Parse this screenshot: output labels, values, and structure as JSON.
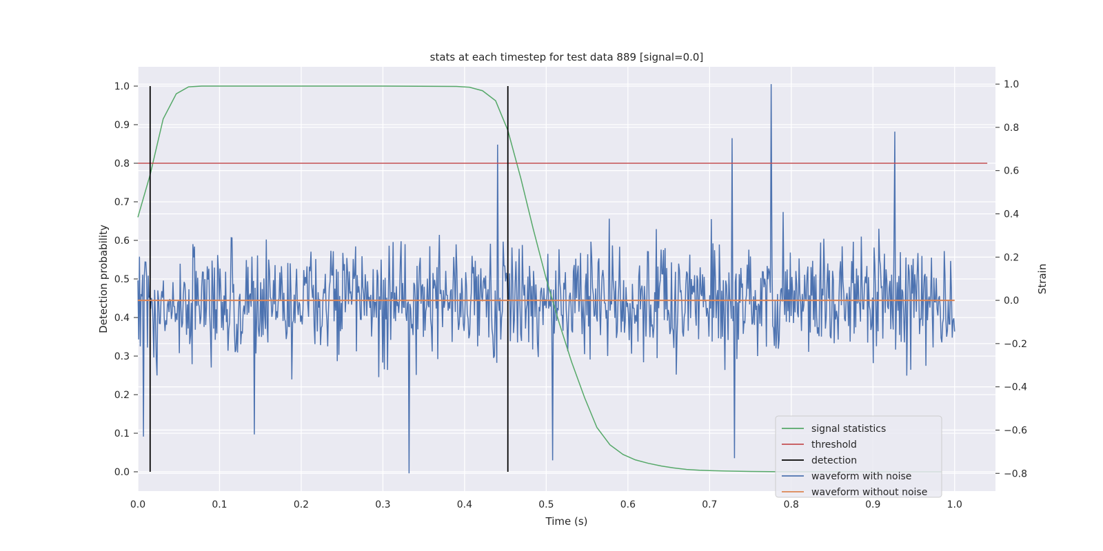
{
  "chart_data": {
    "type": "line",
    "title": "stats at each timestep for test data 889 [signal=0.0]",
    "xlabel": "Time (s)",
    "ylabel": "Detection probability",
    "y2label": "Strain",
    "xlim": [
      0.0,
      1.05
    ],
    "ylim": [
      -0.05,
      1.05
    ],
    "y2lim": [
      -0.882,
      1.08
    ],
    "x_ticks": [
      "0.0",
      "0.1",
      "0.2",
      "0.3",
      "0.4",
      "0.5",
      "0.6",
      "0.7",
      "0.8",
      "0.9",
      "1.0"
    ],
    "y_ticks": [
      "0.0",
      "0.1",
      "0.2",
      "0.3",
      "0.4",
      "0.5",
      "0.6",
      "0.7",
      "0.8",
      "0.9",
      "1.0"
    ],
    "y2_ticks": [
      "−0.8",
      "−0.6",
      "−0.4",
      "−0.2",
      "0.0",
      "0.2",
      "0.4",
      "0.6",
      "0.8",
      "1.0"
    ],
    "y2_tick_values": [
      -0.8,
      -0.6,
      -0.4,
      -0.2,
      0.0,
      0.2,
      0.4,
      0.6,
      0.8,
      1.0
    ],
    "grid": true,
    "legend_position": "bottom-right",
    "colors": {
      "signal_statistics": "#55a868",
      "threshold": "#c44e52",
      "detection": "#000000",
      "waveform_with_noise": "#4c72b0",
      "waveform_without_noise": "#dd8452",
      "plot_background": "#eaeaf2",
      "grid": "#ffffff"
    },
    "series": [
      {
        "name": "signal statistics",
        "axis": "left",
        "x": [
          0.0,
          0.015,
          0.031,
          0.047,
          0.062,
          0.078,
          0.1,
          0.2,
          0.3,
          0.39,
          0.406,
          0.422,
          0.438,
          0.453,
          0.469,
          0.484,
          0.5,
          0.516,
          0.531,
          0.547,
          0.562,
          0.578,
          0.594,
          0.609,
          0.625,
          0.641,
          0.656,
          0.672,
          0.688,
          0.703,
          0.719,
          0.75,
          0.8,
          0.9,
          0.95,
          0.984
        ],
        "y": [
          0.66,
          0.77,
          0.915,
          0.98,
          0.998,
          1.0,
          1.0,
          1.0,
          1.0,
          0.999,
          0.997,
          0.988,
          0.962,
          0.885,
          0.76,
          0.63,
          0.5,
          0.385,
          0.285,
          0.192,
          0.115,
          0.07,
          0.045,
          0.031,
          0.022,
          0.015,
          0.01,
          0.006,
          0.004,
          0.003,
          0.002,
          0.001,
          0.0,
          0.0,
          0.0,
          0.0
        ]
      },
      {
        "name": "threshold",
        "axis": "left",
        "x": [
          0.0,
          1.04
        ],
        "y": [
          0.8,
          0.8
        ]
      },
      {
        "name": "detection",
        "axis": "left",
        "x_positions": [
          0.015,
          0.453
        ],
        "y_range": [
          0.0,
          1.0
        ]
      },
      {
        "name": "waveform with noise",
        "axis": "right",
        "x_range": [
          0.0,
          1.0
        ],
        "y_range": [
          -0.8,
          1.0
        ],
        "notable_peaks": [
          {
            "x": 0.775,
            "y": 1.0
          },
          {
            "x": 0.927,
            "y": 0.78
          },
          {
            "x": 0.728,
            "y": 0.75
          },
          {
            "x": 0.44,
            "y": 0.72
          },
          {
            "x": 0.332,
            "y": -0.8
          },
          {
            "x": 0.508,
            "y": -0.74
          },
          {
            "x": 0.73,
            "y": -0.73
          },
          {
            "x": 0.007,
            "y": -0.63
          },
          {
            "x": 0.143,
            "y": -0.62
          }
        ]
      },
      {
        "name": "waveform without noise",
        "axis": "right",
        "x": [
          0.0,
          1.0
        ],
        "y": [
          0.0,
          0.0
        ]
      }
    ]
  }
}
